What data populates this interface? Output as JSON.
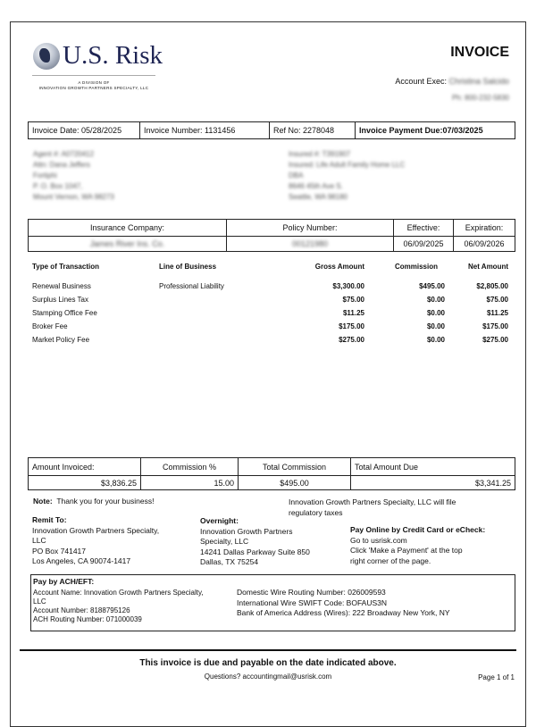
{
  "logo": {
    "name": "U.S. Risk",
    "division_line1": "A DIVISION OF",
    "division_line2": "INNOVATION GROWTH PARTNERS SPECIALTY, LLC"
  },
  "title": "INVOICE",
  "account_exec": {
    "label": "Account Exec:",
    "name": "Christina Salcido",
    "phone": "Ph: 800-232-5830"
  },
  "info_bar": {
    "invoice_date": "Invoice Date: 05/28/2025",
    "invoice_number": "Invoice Number: 1131456",
    "ref_no": "Ref No: 2278048",
    "payment_due": "Invoice Payment Due:07/03/2025"
  },
  "agent": [
    "Agent #: A0720412",
    "Attn: Dana Jeffers",
    "Fortiphi",
    "P. O. Box 1047,",
    "Mount Vernon, WA 98273"
  ],
  "insured": [
    "Insured #: T391907",
    "Insured: Life Adult Family Home LLC",
    "DBA",
    "8646 45th Ave S.",
    "Seattle, WA 98180"
  ],
  "policy": {
    "headers": [
      "Insurance Company:",
      "Policy Number:",
      "Effective:",
      "Expiration:"
    ],
    "values": [
      "James River Ins. Co.",
      "00121980",
      "06/09/2025",
      "06/09/2026"
    ]
  },
  "transactions": {
    "headers": [
      "Type of Transaction",
      "Line of Business",
      "Gross Amount",
      "Commission",
      "Net Amount"
    ],
    "rows": [
      [
        "Renewal Business",
        "Professional Liability",
        "$3,300.00",
        "$495.00",
        "$2,805.00"
      ],
      [
        "Surplus Lines Tax",
        "",
        "$75.00",
        "$0.00",
        "$75.00"
      ],
      [
        "Stamping Office Fee",
        "",
        "$11.25",
        "$0.00",
        "$11.25"
      ],
      [
        "Broker Fee",
        "",
        "$175.00",
        "$0.00",
        "$175.00"
      ],
      [
        "Market Policy Fee",
        "",
        "$275.00",
        "$0.00",
        "$275.00"
      ]
    ]
  },
  "totals": {
    "headers": [
      "Amount Invoiced:",
      "Commission %",
      "Total Commission",
      "Total Amount Due"
    ],
    "values": [
      "$3,836.25",
      "15.00",
      "$495.00",
      "$3,341.25"
    ]
  },
  "note": {
    "label": "Note:",
    "text": "Thank you for your business!",
    "tax_line1": "Innovation Growth Partners Specialty, LLC will file",
    "tax_line2": "regulatory taxes"
  },
  "remit": {
    "label": "Remit To:",
    "lines": [
      "Innovation Growth Partners Specialty,",
      "LLC",
      "PO Box 741417",
      "Los Angeles, CA 90074-1417"
    ]
  },
  "overnight": {
    "label": "Overnight:",
    "lines": [
      "Innovation Growth Partners",
      "Specialty, LLC",
      "14241 Dallas Parkway Suite 850",
      "Dallas, TX 75254"
    ]
  },
  "online": {
    "label": "Pay Online by Credit Card or eCheck:",
    "lines": [
      "Go to usrisk.com",
      "Click 'Make a Payment' at the top",
      "right corner of the page."
    ]
  },
  "ach": {
    "label": "Pay by ACH/EFT:",
    "left": [
      "Account Name: Innovation Growth Partners Specialty,",
      "LLC",
      "Account Number: 8188795126",
      "ACH Routing Number: 071000039"
    ],
    "right": [
      "Domestic Wire Routing Number: 026009593",
      "International Wire SWIFT Code: BOFAUS3N",
      "Bank of America Address (Wires): 222 Broadway New York, NY"
    ]
  },
  "footer": {
    "due_notice": "This invoice is due and payable on the date indicated above.",
    "questions": "Questions? accountingmail@usrisk.com",
    "page": "Page 1 of 1"
  }
}
